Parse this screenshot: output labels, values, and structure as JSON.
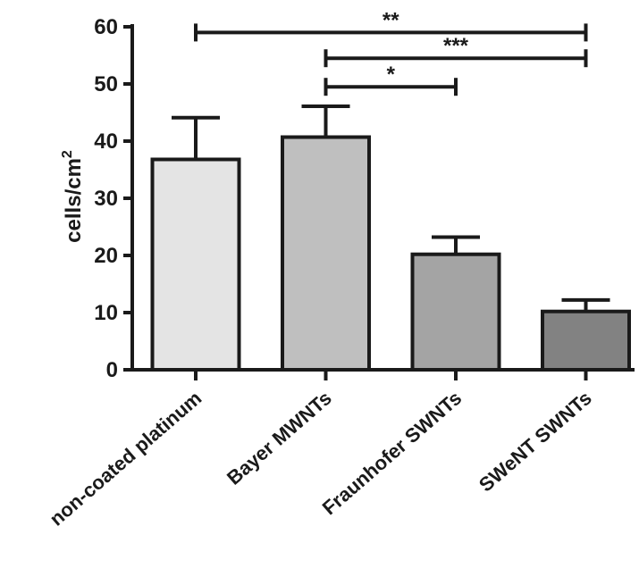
{
  "chart_data": {
    "type": "bar",
    "categories": [
      "non-coated platinum",
      "Bayer MWNTs",
      "Fraunhofer SWNTs",
      "SWeNT SWNTs"
    ],
    "values": [
      36.8,
      40.7,
      20.2,
      10.2
    ],
    "errors": [
      7.3,
      5.4,
      3.0,
      2.0
    ],
    "bar_colors": [
      "#e4e4e4",
      "#bfbfbf",
      "#a4a4a4",
      "#828282"
    ],
    "ylabel_text": "cells/cm",
    "ylabel_superscript": "2",
    "ylim": [
      0,
      60
    ],
    "yticks": [
      "0",
      "10",
      "20",
      "30",
      "40",
      "50",
      "60"
    ],
    "significance": [
      {
        "from": 0,
        "to": 3,
        "y": 59,
        "label": "**"
      },
      {
        "from": 1,
        "to": 3,
        "y": 54.5,
        "label": "***"
      },
      {
        "from": 1,
        "to": 2,
        "y": 49.5,
        "label": "*"
      }
    ],
    "grid": false
  }
}
